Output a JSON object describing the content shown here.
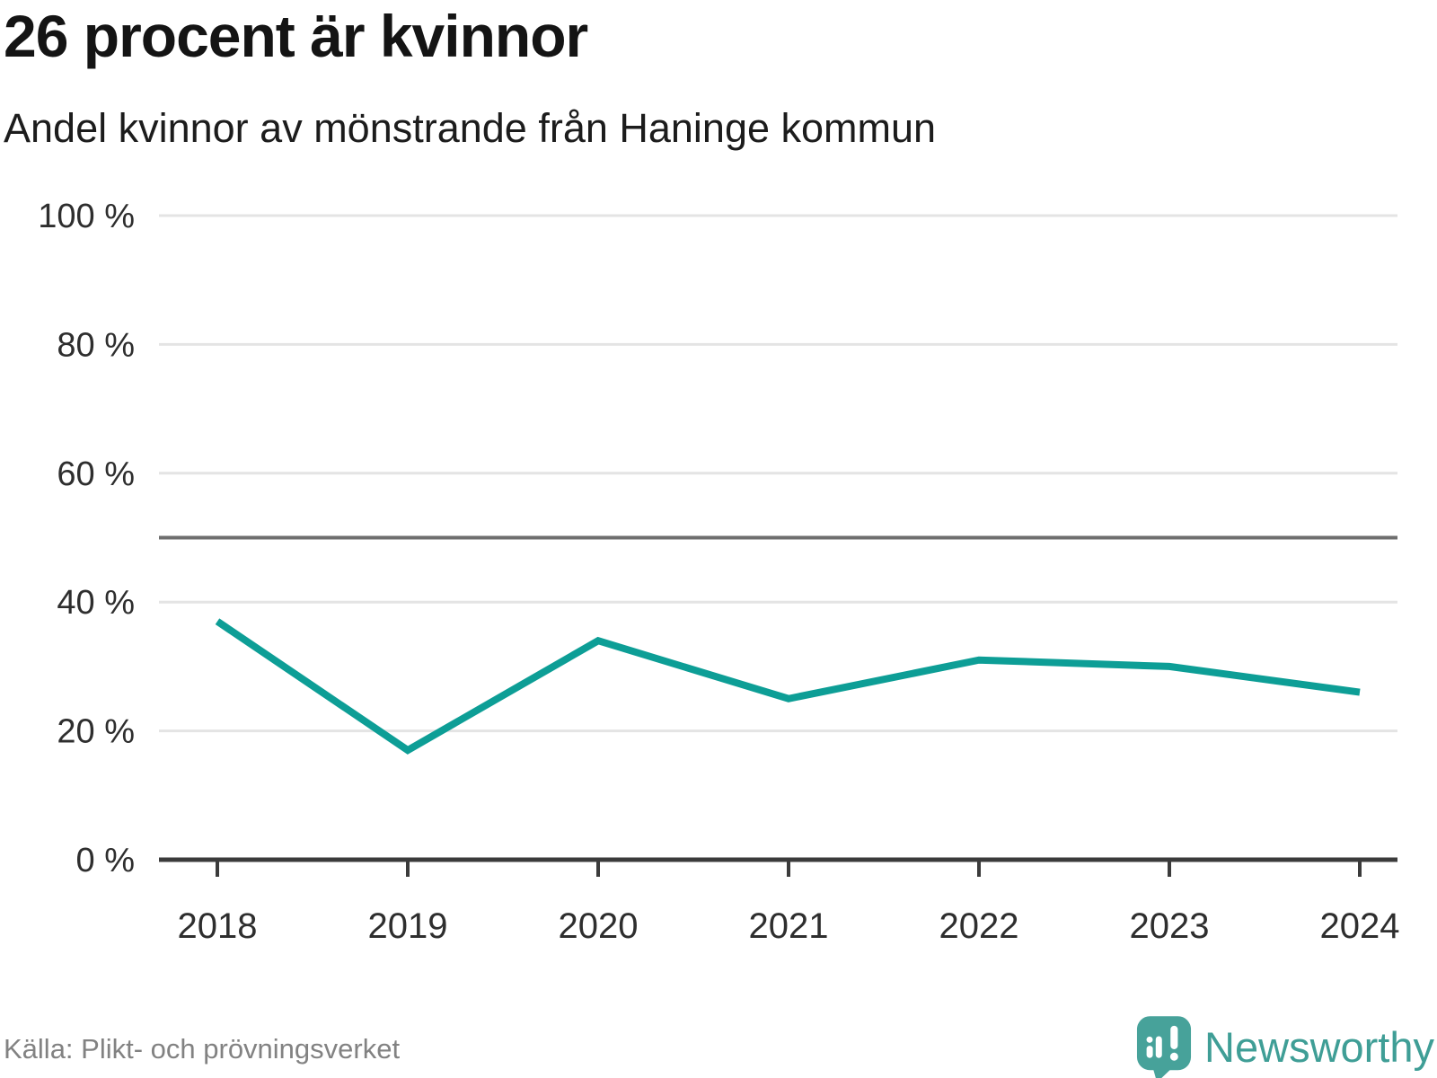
{
  "header": {
    "title": "26 procent är kvinnor",
    "subtitle": "Andel kvinnor av mönstrande från Haninge kommun"
  },
  "chart_data": {
    "type": "line",
    "title": "26 procent är kvinnor",
    "subtitle": "Andel kvinnor av mönstrande från Haninge kommun",
    "x": [
      2018,
      2019,
      2020,
      2021,
      2022,
      2023,
      2024
    ],
    "xtick_labels": [
      "2018",
      "2019",
      "2020",
      "2021",
      "2022",
      "2023",
      "2024"
    ],
    "series": [
      {
        "name": "Andel kvinnor av mönstrande",
        "values": [
          37,
          17,
          34,
          25,
          31,
          30,
          26
        ]
      }
    ],
    "unit": "%",
    "ylim": [
      0,
      100
    ],
    "yticks": [
      0,
      20,
      40,
      60,
      80,
      100
    ],
    "ytick_labels": [
      "0 %",
      "20 %",
      "40 %",
      "60 %",
      "80 %",
      "100 %"
    ],
    "reference_line": {
      "value": 50
    },
    "grid": "horizontal",
    "legend": "none",
    "line_color": "#0d9e96"
  },
  "footer": {
    "source": "Källa: Plikt- och prövningsverket",
    "brand": "Newsworthy"
  },
  "colors": {
    "accent_teal": "#0d9e96",
    "logo_teal": "#3f9e96",
    "grid": "#e4e4e4",
    "reference_line": "#6e6e6e",
    "axis": "#3b3b3b",
    "tick_label": "#2e2e2e",
    "title_text": "#141414",
    "source_text": "#828282",
    "background": "#ffffff"
  }
}
